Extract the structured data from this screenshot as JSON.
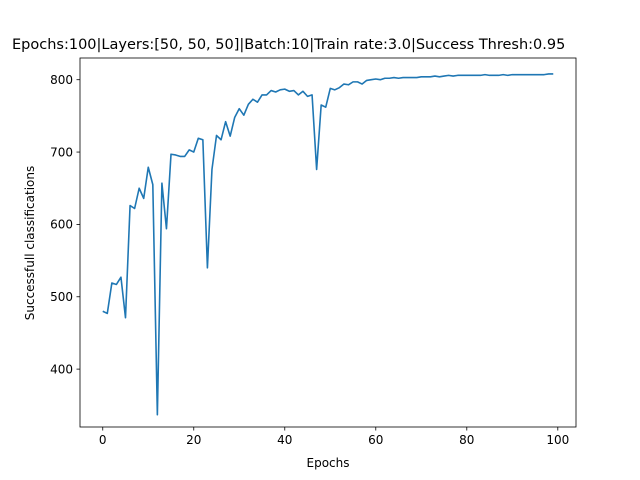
{
  "chart_data": {
    "type": "line",
    "title": "Epochs:100|Layers:[50, 50, 50]|Batch:10|Train rate:3.0|Success Thresh:0.95",
    "xlabel": "Epochs",
    "ylabel": "Successfull classifications",
    "xlim": [
      -5,
      104
    ],
    "ylim": [
      320,
      830
    ],
    "xticks": [
      0,
      20,
      40,
      60,
      80,
      100
    ],
    "yticks": [
      400,
      500,
      600,
      700,
      800
    ],
    "grid": false,
    "line_color": "#1f77b4",
    "series": [
      {
        "x": [
          0,
          1,
          2,
          3,
          4,
          5,
          6,
          7,
          8,
          9,
          10,
          11,
          12,
          13,
          14,
          15,
          16,
          17,
          18,
          19,
          20,
          21,
          22,
          23,
          24,
          25,
          26,
          27,
          28,
          29,
          30,
          31,
          32,
          33,
          34,
          35,
          36,
          37,
          38,
          39,
          40,
          41,
          42,
          43,
          44,
          45,
          46,
          47,
          48,
          49,
          50,
          51,
          52,
          53,
          54,
          55,
          56,
          57,
          58,
          59,
          60,
          61,
          62,
          63,
          64,
          65,
          66,
          67,
          68,
          69,
          70,
          71,
          72,
          73,
          74,
          75,
          76,
          77,
          78,
          79,
          80,
          81,
          82,
          83,
          84,
          85,
          86,
          87,
          88,
          89,
          90,
          91,
          92,
          93,
          94,
          95,
          96,
          97,
          98,
          99
        ],
        "values": [
          480,
          477,
          519,
          517,
          527,
          471,
          626,
          622,
          650,
          636,
          679,
          655,
          337,
          657,
          594,
          697,
          696,
          694,
          694,
          703,
          700,
          719,
          717,
          540,
          676,
          723,
          717,
          742,
          722,
          748,
          760,
          751,
          766,
          773,
          769,
          779,
          779,
          785,
          783,
          786,
          787,
          784,
          785,
          779,
          784,
          777,
          779,
          676,
          765,
          762,
          788,
          786,
          789,
          794,
          793,
          797,
          797,
          794,
          799,
          800,
          801,
          800,
          802,
          802,
          803,
          802,
          803,
          803,
          803,
          803,
          804,
          804,
          804,
          805,
          804,
          805,
          806,
          805,
          806,
          806,
          806,
          806,
          806,
          806,
          807,
          806,
          806,
          806,
          807,
          806,
          807,
          807,
          807,
          807,
          807,
          807,
          807,
          807,
          808,
          808
        ]
      }
    ]
  }
}
